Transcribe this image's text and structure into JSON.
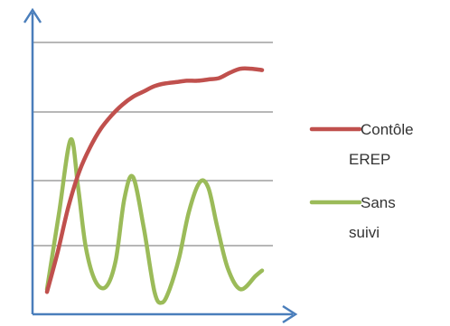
{
  "colors": {
    "axis": "#4a7ebb",
    "grid": "#8c8c8c",
    "series_1": "#c0504d",
    "series_2": "#9bbb59"
  },
  "chart_data": {
    "type": "line",
    "title": "",
    "xlabel": "",
    "ylabel": "",
    "grid": true,
    "gridline_count": 4,
    "ticks_shown": false,
    "legend_position": "right",
    "xlim": [
      0,
      10
    ],
    "ylim": [
      0,
      1
    ],
    "series": [
      {
        "name": "Contôle EREP",
        "legend_lines": [
          "Contôle",
          "EREP"
        ],
        "color": "#c0504d",
        "x": [
          0,
          0.5,
          1,
          1.5,
          2,
          2.5,
          3,
          3.5,
          4,
          4.5,
          5,
          5.5,
          6,
          6.5,
          7,
          7.5,
          8,
          8.5,
          9,
          9.5,
          10
        ],
        "y": [
          0.07,
          0.22,
          0.39,
          0.52,
          0.61,
          0.68,
          0.73,
          0.77,
          0.8,
          0.82,
          0.84,
          0.85,
          0.855,
          0.86,
          0.86,
          0.865,
          0.87,
          0.89,
          0.905,
          0.905,
          0.9
        ]
      },
      {
        "name": "Sans suivi",
        "legend_lines": [
          "Sans",
          "suivi"
        ],
        "color": "#9bbb59",
        "x": [
          0,
          0.55,
          1.1,
          1.45,
          1.8,
          2.25,
          2.75,
          3.2,
          3.6,
          4.0,
          4.5,
          5.0,
          5.35,
          5.7,
          6.15,
          6.6,
          7.1,
          7.5,
          7.9,
          8.4,
          9.0,
          9.7,
          10
        ],
        "y": [
          0.08,
          0.36,
          0.64,
          0.46,
          0.24,
          0.11,
          0.09,
          0.19,
          0.42,
          0.5,
          0.31,
          0.07,
          0.03,
          0.08,
          0.2,
          0.37,
          0.48,
          0.46,
          0.32,
          0.16,
          0.08,
          0.13,
          0.15
        ]
      }
    ]
  }
}
